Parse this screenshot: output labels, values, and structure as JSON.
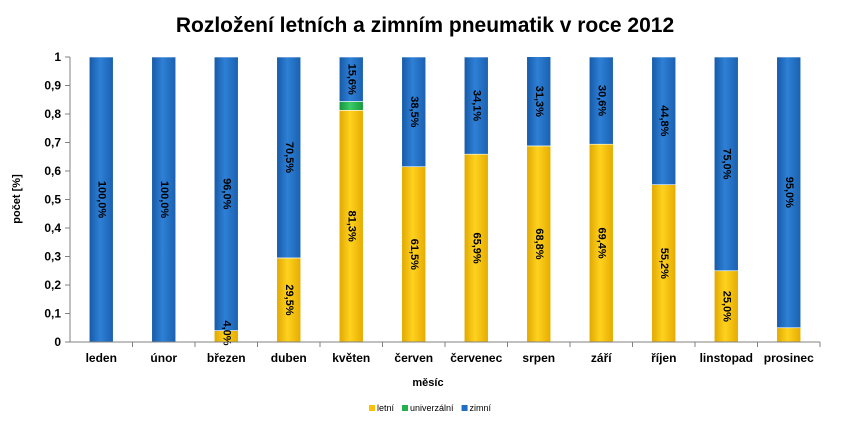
{
  "chart_data": {
    "type": "bar",
    "stacked": true,
    "title": "Rozložení letních a zimním pneumatik v roce 2012",
    "xlabel": "měsíc",
    "ylabel": "počet [%]",
    "ylim": [
      0,
      1
    ],
    "yticks": [
      "0",
      "0,1",
      "0,2",
      "0,3",
      "0,4",
      "0,5",
      "0,6",
      "0,7",
      "0,8",
      "0,9",
      "1"
    ],
    "grid": false,
    "legend_position": "bottom",
    "categories": [
      "leden",
      "únor",
      "březen",
      "duben",
      "květen",
      "červen",
      "červenec",
      "srpen",
      "září",
      "říjen",
      "linstopad",
      "prosinec"
    ],
    "series": [
      {
        "name": "letní",
        "color": "#FFC000",
        "values": [
          0,
          0,
          0.04,
          0.295,
          0.813,
          0.615,
          0.659,
          0.688,
          0.694,
          0.552,
          0.25,
          0.05
        ],
        "labels": [
          "",
          "",
          "4,0%",
          "29,5%",
          "81,3%",
          "61,5%",
          "65,9%",
          "68,8%",
          "69,4%",
          "55,2%",
          "25,0%",
          ""
        ]
      },
      {
        "name": "univerzální",
        "color": "#22B14C",
        "values": [
          0,
          0,
          0,
          0,
          0.031,
          0,
          0,
          0,
          0,
          0,
          0,
          0
        ],
        "labels": [
          "",
          "",
          "",
          "",
          "",
          "",
          "",
          "",
          "",
          "",
          "",
          ""
        ]
      },
      {
        "name": "zimní",
        "color": "#1F6FC5",
        "values": [
          1.0,
          1.0,
          0.96,
          0.705,
          0.156,
          0.385,
          0.341,
          0.313,
          0.306,
          0.448,
          0.75,
          0.95
        ],
        "labels": [
          "100,0%",
          "100,0%",
          "96,0%",
          "70,5%",
          "15,6%",
          "38,5%",
          "34,1%",
          "31,3%",
          "30,6%",
          "44,8%",
          "75,0%",
          "95,0%"
        ]
      }
    ]
  }
}
